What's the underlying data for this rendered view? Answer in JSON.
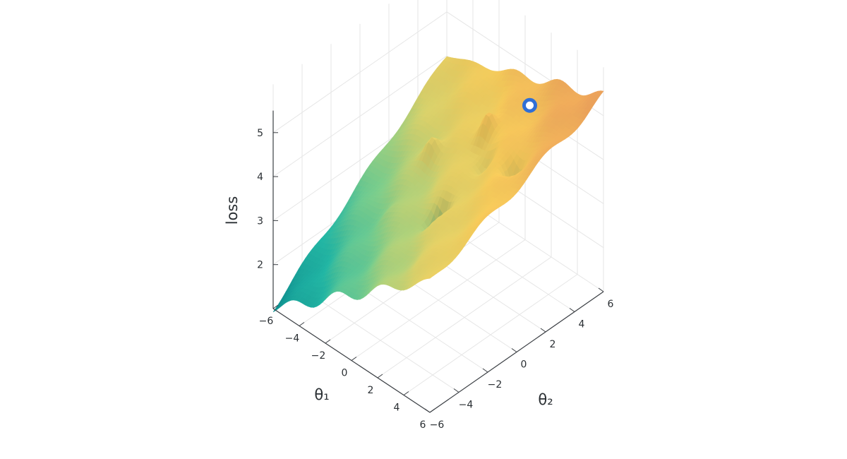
{
  "chart_data": {
    "type": "surface",
    "title": "",
    "axes": {
      "x": {
        "label": "θ₁",
        "range": [
          -6,
          6
        ],
        "ticks": [
          -6,
          -4,
          -2,
          0,
          2,
          4,
          6
        ],
        "tick_labels": [
          "−6",
          "−4",
          "−2",
          "0",
          "2",
          "4",
          "6"
        ]
      },
      "y": {
        "label": "θ₂",
        "range": [
          -6,
          6
        ],
        "ticks": [
          -6,
          -4,
          -2,
          0,
          2,
          4,
          6
        ],
        "tick_labels": [
          "−6",
          "−4",
          "−2",
          "0",
          "2",
          "4",
          "6"
        ]
      },
      "z": {
        "label": "loss",
        "range": [
          1,
          5.5
        ],
        "ticks": [
          2,
          3,
          4,
          5
        ],
        "tick_labels": [
          "2",
          "3",
          "4",
          "5"
        ]
      }
    },
    "grid": true,
    "corner_heights": {
      "x_min_y_min": 1.0,
      "x_max_y_min": 3.98,
      "x_min_y_max": 3.99,
      "x_max_y_max": 5.45
    },
    "peaks": [
      {
        "x": -2.2,
        "y": 1.5,
        "z": 4.05
      },
      {
        "x": 0.5,
        "y": 2.9,
        "z": 4.85
      },
      {
        "x": 1.8,
        "y": 1.6,
        "z": 3.95
      },
      {
        "x": 4.1,
        "y": 1.5,
        "z": 4.15
      },
      {
        "x": -2.1,
        "y": -1.7,
        "z": 3.1
      },
      {
        "x": 1.5,
        "y": -1.4,
        "z": 2.85
      }
    ],
    "marker": {
      "x": 2.9,
      "y": 3.7,
      "z": 5.15,
      "color": "#2f6fd6"
    },
    "colorscale": [
      "#0f8f8f",
      "#23b6a4",
      "#7fcd8a",
      "#d8d06a",
      "#f4c95a",
      "#eba25a"
    ]
  }
}
